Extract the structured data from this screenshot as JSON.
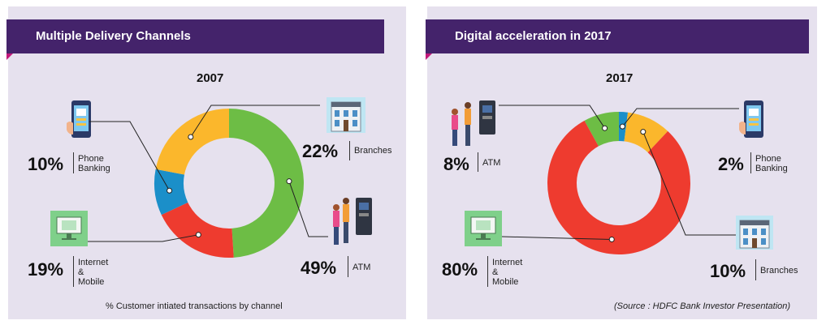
{
  "left": {
    "title": "Multiple Delivery Channels",
    "footnote": "% Customer intiated transactions by channel"
  },
  "right": {
    "title": "Digital acceleration in 2017",
    "footnote": "(Source : HDFC Bank Investor Presentation)"
  },
  "colors": {
    "banner": "#44236b",
    "panel": "#e6e1ee",
    "accent": "#c2187a",
    "atm": "#6dbd45",
    "internet_mobile": "#ee3b2f",
    "phone_banking": "#1b8fc9",
    "branches": "#fbb72c"
  },
  "icons": [
    "phone-banking-icon",
    "branches-icon",
    "atm-icon",
    "internet-mobile-icon"
  ],
  "chart_data": [
    {
      "type": "pie",
      "style": "donut",
      "title": "2007",
      "categories": [
        "ATM",
        "Internet & Mobile",
        "Phone Banking",
        "Branches"
      ],
      "values": [
        49,
        19,
        10,
        22
      ],
      "labels": [
        "49%",
        "19%",
        "10%",
        "22%"
      ],
      "colors": [
        "#6dbd45",
        "#ee3b2f",
        "#1b8fc9",
        "#fbb72c"
      ],
      "legend_labels": {
        "atm": "ATM",
        "internet": [
          "Internet",
          "&",
          "Mobile"
        ],
        "phone": [
          "Phone",
          "Banking"
        ],
        "branches": "Branches"
      }
    },
    {
      "type": "pie",
      "style": "donut",
      "title": "2017",
      "categories": [
        "Phone Banking",
        "Branches",
        "Internet & Mobile",
        "ATM"
      ],
      "values": [
        2,
        10,
        80,
        8
      ],
      "labels": [
        "2%",
        "10%",
        "80%",
        "8%"
      ],
      "colors": [
        "#1b8fc9",
        "#fbb72c",
        "#ee3b2f",
        "#6dbd45"
      ],
      "legend_labels": {
        "atm": "ATM",
        "internet": [
          "Internet",
          "&",
          "Mobile"
        ],
        "phone": [
          "Phone",
          "Banking"
        ],
        "branches": "Branches"
      }
    }
  ]
}
